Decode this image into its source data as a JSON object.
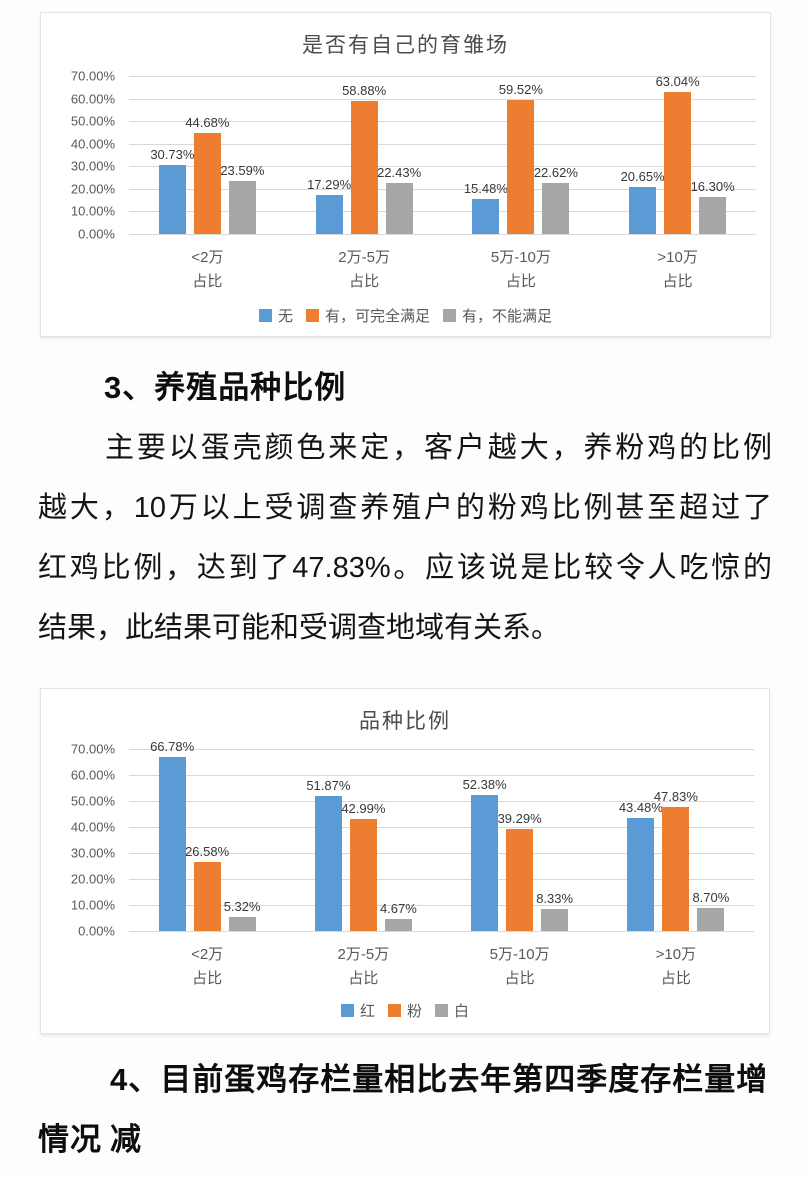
{
  "chart_data": [
    {
      "type": "bar",
      "title": "是否有自己的育雏场",
      "categories": [
        "<2万\n占比",
        "2万-5万\n占比",
        "5万-10万\n占比",
        ">10万\n占比"
      ],
      "series": [
        {
          "name": "无",
          "color": "#5B9BD5",
          "values": [
            30.73,
            17.29,
            15.48,
            20.65
          ]
        },
        {
          "name": "有，可完全满足",
          "color": "#ED7D31",
          "values": [
            44.68,
            58.88,
            59.52,
            63.04
          ]
        },
        {
          "name": "有，不能满足",
          "color": "#A6A6A6",
          "values": [
            23.59,
            22.43,
            22.62,
            16.3
          ]
        }
      ],
      "ylim": [
        0,
        70
      ],
      "yticks": [
        "70.00%",
        "60.00%",
        "50.00%",
        "40.00%",
        "30.00%",
        "20.00%",
        "10.00%",
        "0.00%"
      ],
      "grid": true,
      "data_labels": true,
      "legend_position": "bottom"
    },
    {
      "type": "bar",
      "title": "品种比例",
      "categories": [
        "<2万\n占比",
        "2万-5万\n占比",
        "5万-10万\n占比",
        ">10万\n占比"
      ],
      "series": [
        {
          "name": "红",
          "color": "#5B9BD5",
          "values": [
            66.78,
            51.87,
            52.38,
            43.48
          ]
        },
        {
          "name": "粉",
          "color": "#ED7D31",
          "values": [
            26.58,
            42.99,
            39.29,
            47.83
          ]
        },
        {
          "name": "白",
          "color": "#A6A6A6",
          "values": [
            5.32,
            4.67,
            8.33,
            8.7
          ]
        }
      ],
      "ylim": [
        0,
        70
      ],
      "yticks": [
        "70.00%",
        "60.00%",
        "50.00%",
        "40.00%",
        "30.00%",
        "20.00%",
        "10.00%",
        "0.00%"
      ],
      "grid": true,
      "data_labels": true,
      "legend_position": "bottom"
    }
  ],
  "document": {
    "section3": {
      "heading": "3、养殖品种比例",
      "paragraph_lines": [
        "主要以蛋壳颜色来定，客户越大，养粉鸡的比例",
        "越大，10万以上受调查养殖户的粉鸡比例甚至超过了",
        "红鸡比例，达到了47.83%。应该说是比较令人吃惊的",
        "结果，此结果可能和受调查地域有关系。"
      ]
    },
    "section4": {
      "heading_lines": [
        "4、目前蛋鸡存栏量相比去年第四季度存栏量增减",
        "情况"
      ]
    }
  },
  "colors": {
    "series_blue": "#5B9BD5",
    "series_orange": "#ED7D31",
    "series_gray": "#A6A6A6",
    "gridline": "#d9d9d9",
    "axis_text": "#595959"
  }
}
